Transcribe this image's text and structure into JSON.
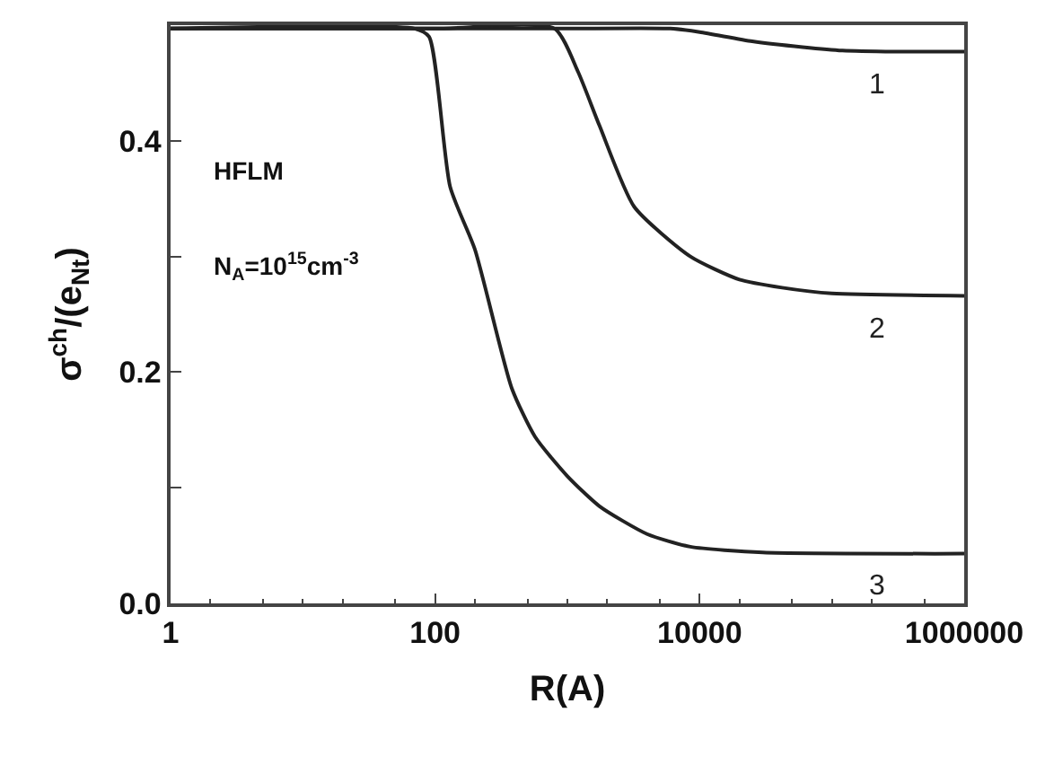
{
  "chart_data": {
    "type": "line",
    "xlabel": "R(A)",
    "ylabel": "σ$^{ch}$/(e$_{Nt}$)",
    "log": "x",
    "xlim": [
      1,
      1000000
    ],
    "xticks": [
      1,
      100,
      10000,
      1000000
    ],
    "ylim": [
      0,
      0.5
    ],
    "yticks": [
      {
        "value": 0,
        "label": "0.0"
      },
      {
        "value": 0.1,
        "label": null
      },
      {
        "value": 0.2,
        "label": "0.2"
      },
      {
        "value": 0.3,
        "label": null
      },
      {
        "value": 0.4,
        "label": "0.4"
      }
    ],
    "legend": false,
    "marker": "none",
    "line_style": "solid",
    "series": [
      {
        "name": "1",
        "color": "#222222",
        "x": [
          1,
          100,
          1000,
          6000,
          10000,
          25000,
          60000,
          120000,
          300000,
          1000000
        ],
        "values": [
          0.497,
          0.497,
          0.497,
          0.497,
          0.494,
          0.486,
          0.481,
          0.478,
          0.477,
          0.477
        ]
      },
      {
        "name": "2",
        "color": "#222222",
        "x": [
          1,
          100,
          800,
          1200,
          1750,
          3200,
          8500,
          20000,
          42000,
          100000,
          1000000
        ],
        "values": [
          0.497,
          0.497,
          0.497,
          0.46,
          0.413,
          0.343,
          0.3,
          0.28,
          0.273,
          0.268,
          0.266
        ]
      },
      {
        "name": "3",
        "color": "#222222",
        "x": [
          1,
          70,
          90,
          130,
          200,
          380,
          570,
          1000,
          1750,
          4000,
          8500,
          30000,
          1000000
        ],
        "values": [
          0.497,
          0.497,
          0.49,
          0.36,
          0.306,
          0.186,
          0.144,
          0.11,
          0.084,
          0.06,
          0.049,
          0.044,
          0.043
        ]
      }
    ],
    "annotations": [
      "HFLM",
      "N$_{A}$=10$^{15}$cm$^{-3}$"
    ]
  }
}
